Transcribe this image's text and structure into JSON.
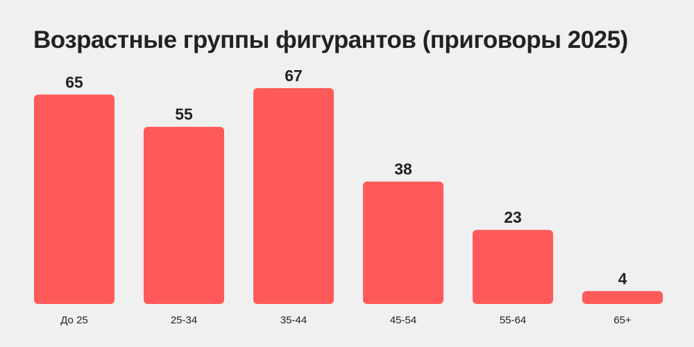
{
  "chart_data": {
    "type": "bar",
    "title": "Возрастные группы фигурантов (приговоры 2025)",
    "categories": [
      "До 25",
      "25-34",
      "35-44",
      "45-54",
      "55-64",
      "65+"
    ],
    "values": [
      65,
      55,
      67,
      38,
      23,
      4
    ],
    "xlabel": "",
    "ylabel": "",
    "ylim": [
      0,
      67
    ],
    "grid": false,
    "data_labels": true,
    "colors": {
      "bar": "#ff5a5a",
      "background": "#f0f0f0",
      "text": "#222222"
    }
  }
}
